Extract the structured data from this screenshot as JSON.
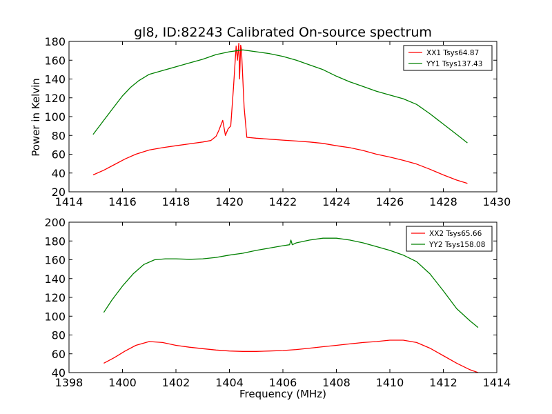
{
  "figure": {
    "background": "#ffffff"
  },
  "chart_data": [
    {
      "type": "line",
      "title": "gl8, ID:82243 Calibrated On-source spectrum",
      "xlabel": "",
      "ylabel": "Power in Kelvin",
      "xlim": [
        1414,
        1430
      ],
      "ylim": [
        20,
        180
      ],
      "xticks": [
        "1414",
        "1416",
        "1418",
        "1420",
        "1422",
        "1424",
        "1426",
        "1428",
        "1430"
      ],
      "yticks": [
        "20",
        "40",
        "60",
        "80",
        "100",
        "120",
        "140",
        "160",
        "180"
      ],
      "grid": false,
      "legend_position": "top-right",
      "series": [
        {
          "name": "XX1 Tsys64.87",
          "color": "#ff0000",
          "x": [
            1414.9,
            1415.3,
            1415.7,
            1416.1,
            1416.5,
            1417.0,
            1417.5,
            1418.0,
            1418.5,
            1419.0,
            1419.3,
            1419.5,
            1419.6,
            1419.75,
            1419.85,
            1419.95,
            1420.05,
            1420.15,
            1420.25,
            1420.3,
            1420.35,
            1420.38,
            1420.42,
            1420.45,
            1420.55,
            1420.65,
            1421.0,
            1421.5,
            1422.0,
            1422.5,
            1423.0,
            1423.5,
            1424.0,
            1424.5,
            1425.0,
            1425.5,
            1426.0,
            1426.5,
            1427.0,
            1427.5,
            1428.0,
            1428.5,
            1428.9
          ],
          "values": [
            38,
            43,
            49,
            55,
            60,
            64.5,
            67,
            69,
            71,
            73,
            74.5,
            79,
            85,
            96,
            80,
            87,
            90,
            130,
            175,
            160,
            178,
            140,
            176,
            172,
            110,
            78,
            77,
            76,
            75,
            74,
            73,
            71.5,
            69,
            67,
            64,
            60,
            57,
            53.5,
            49.5,
            44,
            38,
            32.5,
            29
          ]
        },
        {
          "name": "YY1 Tsys137.43",
          "color": "#008000",
          "x": [
            1414.9,
            1415.3,
            1415.7,
            1416.0,
            1416.3,
            1416.6,
            1417.0,
            1417.5,
            1418.0,
            1418.5,
            1419.0,
            1419.5,
            1420.0,
            1420.5,
            1421.0,
            1421.5,
            1422.0,
            1422.5,
            1423.0,
            1423.5,
            1424.0,
            1424.5,
            1425.0,
            1425.5,
            1426.0,
            1426.5,
            1427.0,
            1427.5,
            1428.0,
            1428.5,
            1428.9
          ],
          "values": [
            81,
            96,
            111,
            122,
            131,
            138,
            145,
            149,
            153,
            157,
            161,
            166,
            169,
            171,
            169,
            167,
            164,
            160,
            155,
            150,
            143,
            137,
            132,
            127,
            123,
            119,
            113,
            103,
            92,
            81,
            72
          ]
        }
      ]
    },
    {
      "type": "line",
      "title": "",
      "xlabel": "Frequency (MHz)",
      "ylabel": "",
      "xlim": [
        1398,
        1414
      ],
      "ylim": [
        40,
        200
      ],
      "xticks": [
        "1398",
        "1400",
        "1402",
        "1404",
        "1406",
        "1408",
        "1410",
        "1412",
        "1414"
      ],
      "yticks": [
        "40",
        "60",
        "80",
        "100",
        "120",
        "140",
        "160",
        "180",
        "200"
      ],
      "grid": false,
      "legend_position": "top-right",
      "series": [
        {
          "name": "XX2 Tsys65.66",
          "color": "#ff0000",
          "x": [
            1399.3,
            1399.7,
            1400.1,
            1400.5,
            1401.0,
            1401.5,
            1402.0,
            1402.5,
            1403.0,
            1403.5,
            1404.0,
            1404.5,
            1405.0,
            1405.5,
            1406.0,
            1406.5,
            1407.0,
            1407.5,
            1408.0,
            1408.5,
            1409.0,
            1409.5,
            1410.0,
            1410.5,
            1411.0,
            1411.5,
            1412.0,
            1412.5,
            1413.0,
            1413.3
          ],
          "values": [
            50,
            56,
            63,
            69,
            73,
            72,
            69,
            67,
            65.5,
            64,
            63,
            62.5,
            62.5,
            63,
            63.5,
            64.5,
            66,
            67.5,
            69,
            70.5,
            72,
            73,
            74.5,
            74.5,
            72,
            66,
            58,
            50,
            43,
            40
          ]
        },
        {
          "name": "YY2 Tsys158.08",
          "color": "#008000",
          "x": [
            1399.3,
            1399.6,
            1400.0,
            1400.4,
            1400.8,
            1401.2,
            1401.6,
            1402.0,
            1402.5,
            1403.0,
            1403.5,
            1404.0,
            1404.5,
            1405.0,
            1405.5,
            1406.0,
            1406.25,
            1406.3,
            1406.35,
            1406.5,
            1407.0,
            1407.5,
            1408.0,
            1408.5,
            1409.0,
            1409.5,
            1410.0,
            1410.5,
            1411.0,
            1411.5,
            1412.0,
            1412.5,
            1413.0,
            1413.3
          ],
          "values": [
            104,
            117,
            132,
            145,
            155,
            160,
            161,
            161,
            160.5,
            161,
            162.5,
            165,
            167,
            170,
            172.5,
            175,
            176,
            181,
            176,
            178,
            181,
            183,
            183,
            181,
            178,
            174,
            170,
            165,
            158,
            145,
            127,
            108,
            95,
            88
          ]
        }
      ]
    }
  ]
}
